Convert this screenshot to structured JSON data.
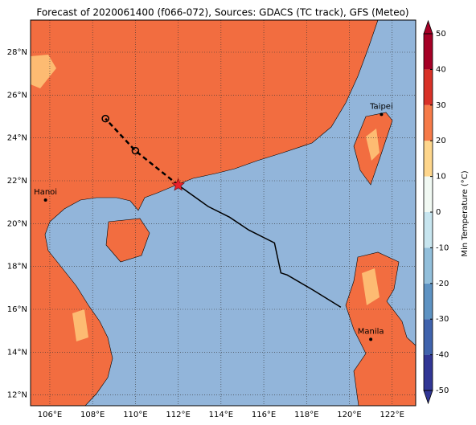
{
  "chart_data": {
    "type": "map",
    "title": "Forecast of 2020061400 (f066-072), Sources: GDACS (TC track), GFS (Meteo)",
    "xlim": [
      105.1,
      123.1
    ],
    "ylim": [
      11.5,
      29.5
    ],
    "xticks": [
      {
        "value": 106,
        "label": "106°E"
      },
      {
        "value": 108,
        "label": "108°E"
      },
      {
        "value": 110,
        "label": "110°E"
      },
      {
        "value": 112,
        "label": "112°E"
      },
      {
        "value": 114,
        "label": "114°E"
      },
      {
        "value": 116,
        "label": "116°E"
      },
      {
        "value": 118,
        "label": "118°E"
      },
      {
        "value": 120,
        "label": "120°E"
      },
      {
        "value": 122,
        "label": "122°E"
      }
    ],
    "yticks": [
      {
        "value": 12,
        "label": "12°N"
      },
      {
        "value": 14,
        "label": "14°N"
      },
      {
        "value": 16,
        "label": "16°N"
      },
      {
        "value": 18,
        "label": "18°N"
      },
      {
        "value": 20,
        "label": "20°N"
      },
      {
        "value": 22,
        "label": "22°N"
      },
      {
        "value": 24,
        "label": "24°N"
      },
      {
        "value": 26,
        "label": "26°N"
      },
      {
        "value": 28,
        "label": "28°N"
      }
    ],
    "grid": true,
    "forecast_track": {
      "lon": [
        112.0,
        110.0,
        108.6
      ],
      "lat": [
        21.8,
        23.4,
        24.9
      ],
      "color": "#000000"
    },
    "observed_track": {
      "lon": [
        112.0,
        113.4,
        114.4,
        115.3,
        116.5,
        116.8,
        117.1,
        118.3,
        119.6
      ],
      "lat": [
        21.8,
        20.8,
        20.3,
        19.7,
        19.1,
        17.7,
        17.6,
        16.9,
        16.1
      ],
      "color": "#000000"
    },
    "current_position": {
      "lon": 112.0,
      "lat": 21.8,
      "color": "#e8202a"
    },
    "cities": [
      {
        "name": "Hanoi",
        "lon": 105.8,
        "lat": 21.1
      },
      {
        "name": "Taipei",
        "lon": 121.5,
        "lat": 25.1
      },
      {
        "name": "Manila",
        "lon": 121.0,
        "lat": 14.6
      }
    ],
    "colorbar": {
      "label": "Min Temperature (°C)",
      "lim": [
        -50,
        50
      ],
      "ticks": [
        -50,
        -40,
        -30,
        -20,
        -10,
        0,
        10,
        20,
        30,
        40,
        50
      ],
      "colors": [
        "#313695",
        "#4063ad",
        "#5e93c3",
        "#92bfdb",
        "#c7e5ef",
        "#f1f9f3",
        "#fed68c",
        "#f67b49",
        "#d83127",
        "#a50026"
      ]
    }
  }
}
